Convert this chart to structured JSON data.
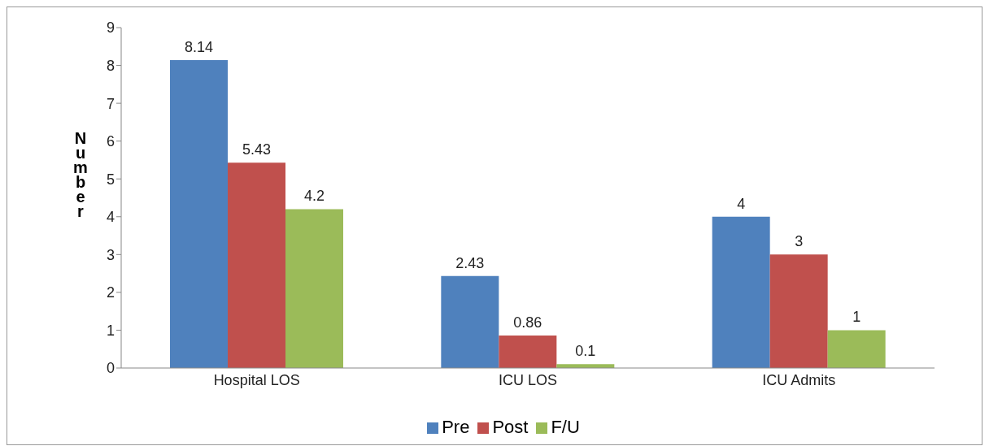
{
  "chart_data": {
    "type": "bar",
    "ylabel": "Number",
    "categories": [
      "Hospital LOS",
      "ICU LOS",
      "ICU Admits"
    ],
    "series": [
      {
        "name": "Pre",
        "color": "#4f81bd",
        "values": [
          8.14,
          2.43,
          4
        ]
      },
      {
        "name": "Post",
        "color": "#c0504d",
        "values": [
          5.43,
          0.86,
          3
        ]
      },
      {
        "name": "F/U",
        "color": "#9bbb59",
        "values": [
          4.2,
          0.1,
          1
        ]
      }
    ],
    "ylim": [
      0,
      9
    ],
    "yticks": [
      0,
      1,
      2,
      3,
      4,
      5,
      6,
      7,
      8,
      9
    ],
    "grid": false,
    "legend": "bottom",
    "data_labels": true
  }
}
